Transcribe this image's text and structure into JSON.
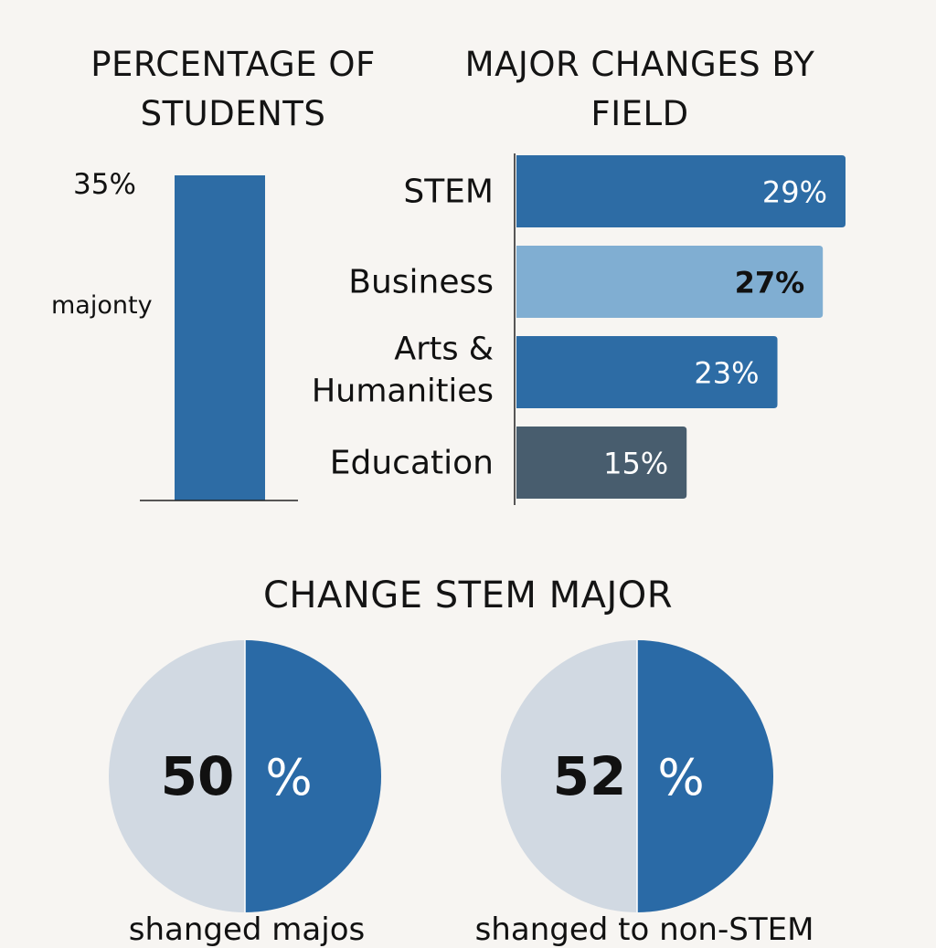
{
  "left_chart": {
    "title": "PERCENTAGE OF STUDENTS",
    "value_label": "35%",
    "side_label": "majonty"
  },
  "right_chart": {
    "title": "MAJOR CHANGES BY FIELD"
  },
  "bottom": {
    "title": "CHANGE STEM MAJOR",
    "captions": [
      "shanged majos",
      "shanged to non-STEM"
    ]
  },
  "colors": {
    "bar_primary": "#2d6ca5",
    "bar_light": "#80aed2",
    "bar_dark": "#485d6e",
    "pie_light": "#d1d9e2",
    "pie_blue": "#2a6aa6"
  },
  "chart_data": [
    {
      "type": "bar",
      "title": "PERCENTAGE OF STUDENTS",
      "categories": [
        "majonty"
      ],
      "values": [
        35
      ],
      "data_labels": [
        "35%"
      ]
    },
    {
      "type": "bar",
      "orientation": "horizontal",
      "title": "MAJOR CHANGES BY FIELD",
      "categories": [
        "STEM",
        "Business",
        "Arts & Humanities",
        "Education"
      ],
      "values": [
        29,
        27,
        23,
        15
      ],
      "data_labels": [
        "29%",
        "27%",
        "23%",
        "15%"
      ],
      "bar_colors": [
        "#2d6ca5",
        "#80aed2",
        "#2d6ca5",
        "#485d6e"
      ]
    },
    {
      "type": "pie",
      "title": "CHANGE STEM MAJOR",
      "values": [
        50,
        50
      ],
      "center_label": [
        "50",
        "%"
      ],
      "caption": "shanged majos"
    },
    {
      "type": "pie",
      "values": [
        48,
        52
      ],
      "center_label": [
        "52",
        "%"
      ],
      "caption": "shanged to non-STEM"
    }
  ]
}
